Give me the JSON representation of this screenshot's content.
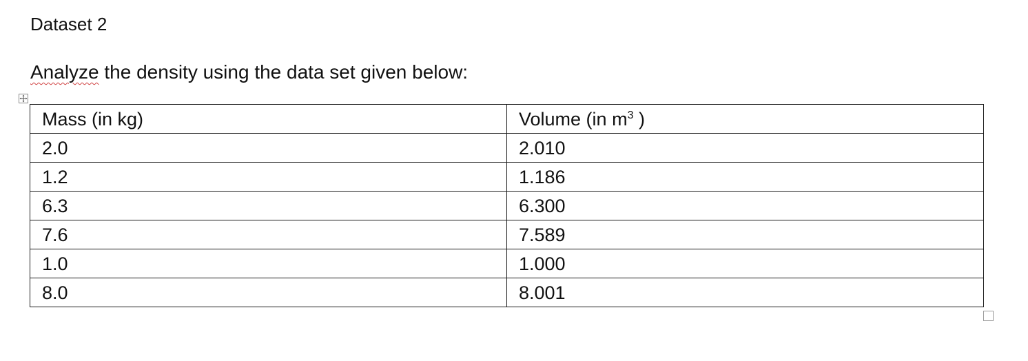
{
  "document": {
    "heading": "Dataset 2",
    "instruction": {
      "underlined_word": "Analyze",
      "rest": " the density using the data set given below:"
    }
  },
  "table": {
    "headers": {
      "mass": "Mass (in kg)",
      "volume_prefix": "Volume (in m",
      "volume_exponent": "3",
      "volume_suffix": " )"
    },
    "rows": [
      {
        "mass": "2.0",
        "volume": "2.010"
      },
      {
        "mass": "1.2",
        "volume": "1.186"
      },
      {
        "mass": "6.3",
        "volume": "6.300"
      },
      {
        "mass": "7.6",
        "volume": "7.589"
      },
      {
        "mass": "1.0",
        "volume": "1.000"
      },
      {
        "mass": "8.0",
        "volume": "8.001"
      }
    ]
  },
  "icons": {
    "move_handle": "table-move-handle-icon",
    "resize_handle": "table-resize-handle-icon"
  },
  "colors": {
    "text": "#111111",
    "border": "#1a1a1a",
    "spellcheck": "#d04040"
  }
}
